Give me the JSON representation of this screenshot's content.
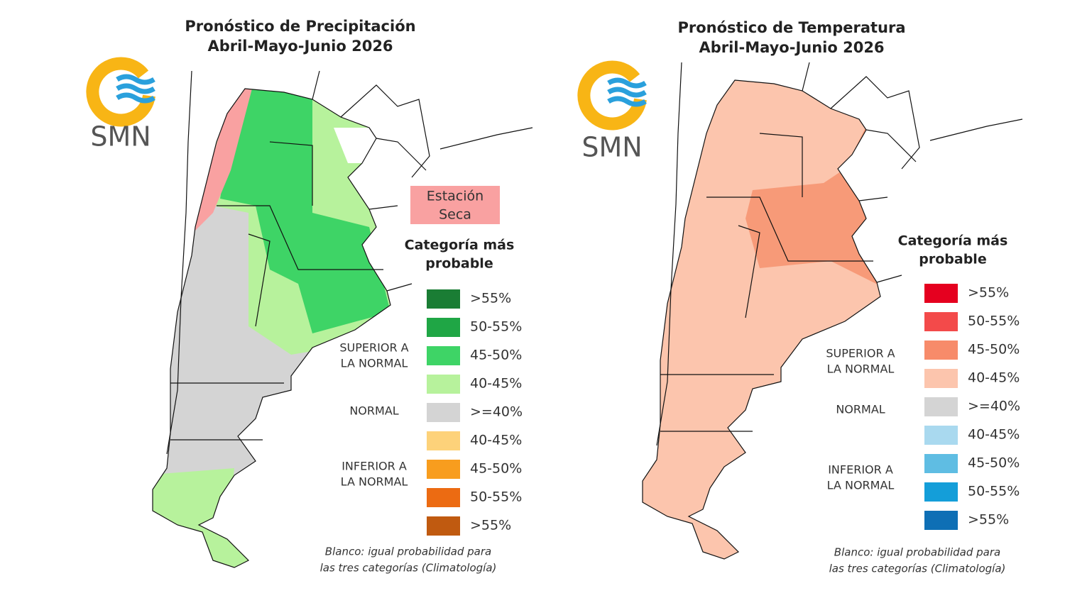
{
  "panels": [
    {
      "title": [
        "Pronóstico de Precipitación",
        "Abril-Mayo-Junio 2026"
      ],
      "logo": "SMN",
      "dry_season_label": [
        "Estación",
        "Seca"
      ],
      "legend": {
        "title": [
          "Categoría más",
          "probable"
        ],
        "items": [
          {
            "label": ">55%",
            "color": "#1a7d34"
          },
          {
            "label": "50-55%",
            "color": "#1fa645"
          },
          {
            "label": "45-50%",
            "color": "#3ed466"
          },
          {
            "label": "40-45%",
            "color": "#b7f29c"
          },
          {
            "label": ">=40%",
            "color": "#d4d4d4"
          },
          {
            "label": "40-45%",
            "color": "#fdd27a"
          },
          {
            "label": "45-50%",
            "color": "#f89d1e"
          },
          {
            "label": "50-55%",
            "color": "#ec6b12"
          },
          {
            "label": ">55%",
            "color": "#c05a10"
          }
        ],
        "groups": [
          [
            "SUPERIOR A",
            "LA NORMAL"
          ],
          [
            "NORMAL"
          ],
          [
            "INFERIOR A",
            "LA NORMAL"
          ]
        ]
      },
      "footnote": [
        "Blanco: igual probabilidad para",
        "las tres categorías (Climatología)"
      ]
    },
    {
      "title": [
        "Pronóstico de Temperatura",
        "Abril-Mayo-Junio 2026"
      ],
      "logo": "SMN",
      "legend": {
        "title": [
          "Categoría más",
          "probable"
        ],
        "items": [
          {
            "label": ">55%",
            "color": "#e5001f"
          },
          {
            "label": "50-55%",
            "color": "#f34a4a"
          },
          {
            "label": "45-50%",
            "color": "#f78b6a"
          },
          {
            "label": "40-45%",
            "color": "#fcc5ad"
          },
          {
            "label": ">=40%",
            "color": "#d4d4d4"
          },
          {
            "label": "40-45%",
            "color": "#a9d9ef"
          },
          {
            "label": "45-50%",
            "color": "#5fbde3"
          },
          {
            "label": "50-55%",
            "color": "#149ed9"
          },
          {
            "label": ">55%",
            "color": "#0e6fb5"
          }
        ],
        "groups": [
          [
            "SUPERIOR A",
            "LA NORMAL"
          ],
          [
            "NORMAL"
          ],
          [
            "INFERIOR A",
            "LA NORMAL"
          ]
        ]
      },
      "footnote": [
        "Blanco: igual probabilidad para",
        "las tres categorías (Climatología)"
      ]
    }
  ]
}
